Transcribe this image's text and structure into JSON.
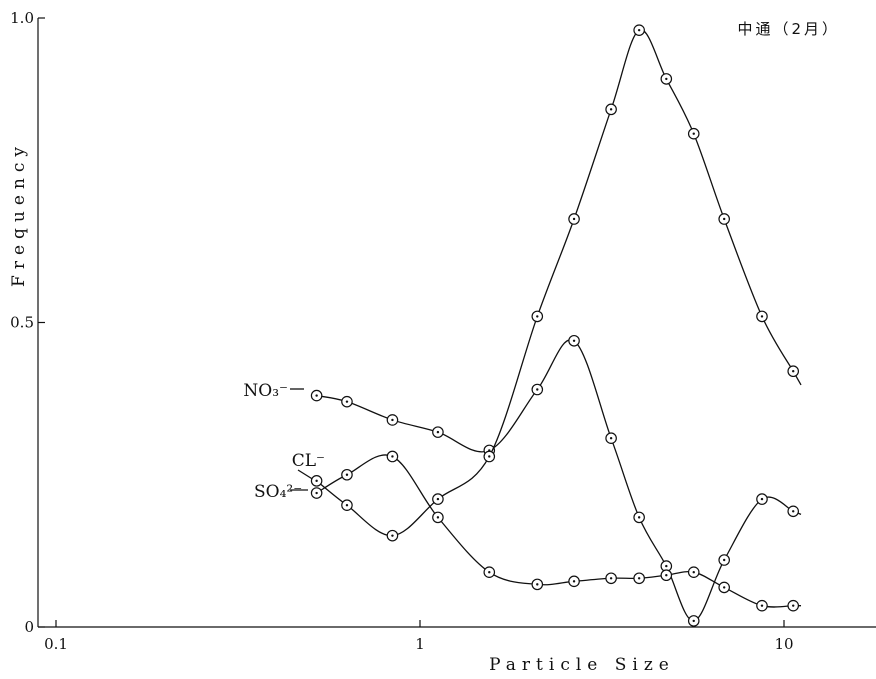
{
  "chart_data": {
    "type": "line",
    "panel_label": "中通（2月）",
    "xlabel": "Particle Size",
    "ylabel": "Frequency",
    "x_scale": "log",
    "xlim": [
      0.07,
      15
    ],
    "ylim": [
      0,
      1.0
    ],
    "x_ticks": [
      {
        "value": 0.1,
        "label": "0.1"
      },
      {
        "value": 1,
        "label": "1"
      },
      {
        "value": 10,
        "label": "10"
      }
    ],
    "y_ticks": [
      {
        "value": 0,
        "label": "0"
      },
      {
        "value": 0.5,
        "label": "0.5"
      },
      {
        "value": 1.0,
        "label": "1.0"
      }
    ],
    "grid": false,
    "series": [
      {
        "name": "NO₃⁻",
        "label_position": "left",
        "x": [
          0.52,
          0.63,
          0.84,
          1.12,
          1.55,
          2.1,
          2.65,
          3.35,
          4.0,
          4.75,
          5.65,
          6.85,
          8.7,
          10.6
        ],
        "y": [
          0.38,
          0.37,
          0.34,
          0.32,
          0.29,
          0.39,
          0.47,
          0.31,
          0.18,
          0.1,
          0.01,
          0.11,
          0.21,
          0.19
        ]
      },
      {
        "name": "CL⁻",
        "label_position": "left",
        "x": [
          0.52,
          0.63,
          0.84,
          1.12,
          1.55,
          2.1,
          2.65,
          3.35,
          4.0,
          4.75,
          5.65,
          6.85,
          8.7,
          10.6
        ],
        "y": [
          0.22,
          0.25,
          0.28,
          0.18,
          0.09,
          0.07,
          0.075,
          0.08,
          0.08,
          0.085,
          0.09,
          0.065,
          0.035,
          0.035
        ]
      },
      {
        "name": "SO₄²⁻",
        "label_position": "left",
        "x": [
          0.52,
          0.63,
          0.84,
          1.12,
          1.55,
          2.1,
          2.65,
          3.35,
          4.0,
          4.75,
          5.65,
          6.85,
          8.7,
          10.6
        ],
        "y": [
          0.24,
          0.2,
          0.15,
          0.21,
          0.28,
          0.51,
          0.67,
          0.85,
          0.98,
          0.9,
          0.81,
          0.67,
          0.51,
          0.42
        ]
      }
    ]
  }
}
